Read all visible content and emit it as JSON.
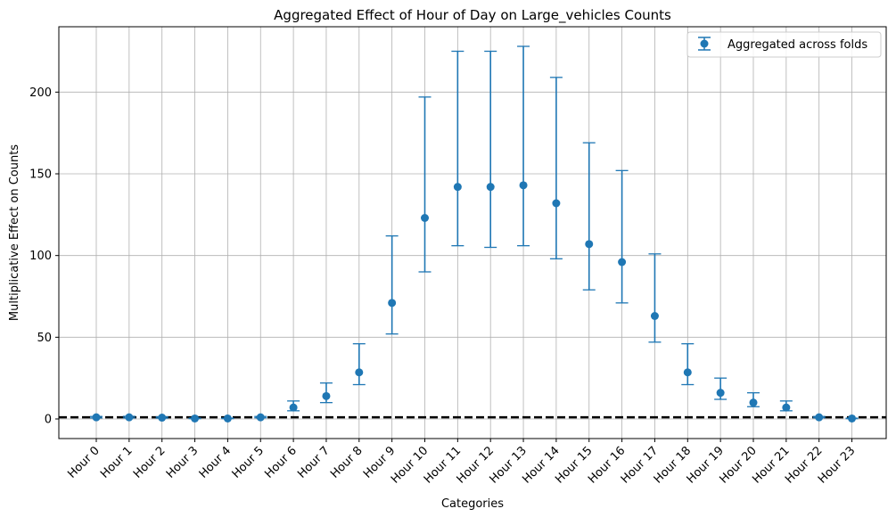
{
  "chart_data": {
    "type": "scatter",
    "title": "Aggregated Effect of Hour of Day on Large_vehicles Counts",
    "xlabel": "Categories",
    "ylabel": "Multiplicative Effect on Counts",
    "ylim": [
      -12,
      240
    ],
    "yticks": [
      0,
      50,
      100,
      150,
      200
    ],
    "grid": true,
    "legend_position": "top-right",
    "reference_line": {
      "y": 1,
      "style": "dashed",
      "color": "#000000"
    },
    "categories": [
      "Hour 0",
      "Hour 1",
      "Hour 2",
      "Hour 3",
      "Hour 4",
      "Hour 5",
      "Hour 6",
      "Hour 7",
      "Hour 8",
      "Hour 9",
      "Hour 10",
      "Hour 11",
      "Hour 12",
      "Hour 13",
      "Hour 14",
      "Hour 15",
      "Hour 16",
      "Hour 17",
      "Hour 18",
      "Hour 19",
      "Hour 20",
      "Hour 21",
      "Hour 22",
      "Hour 23"
    ],
    "series": [
      {
        "name": "Aggregated across folds",
        "color": "#1f77b4",
        "values": [
          1,
          1,
          0.8,
          0.3,
          0.3,
          1,
          7,
          14,
          28.5,
          71,
          123,
          142,
          142,
          143,
          132,
          107,
          96,
          63,
          28.5,
          16,
          10,
          7,
          1,
          0.3
        ],
        "lower": [
          0.6,
          0.6,
          0.5,
          0.2,
          0.2,
          0.7,
          5,
          10,
          21,
          52,
          90,
          106,
          105,
          106,
          98,
          79,
          71,
          47,
          21,
          12,
          7.5,
          5,
          0.7,
          0.2
        ],
        "upper": [
          1.5,
          1.6,
          1.3,
          0.5,
          0.5,
          1.5,
          11,
          22,
          46,
          112,
          197,
          225,
          225,
          228,
          209,
          169,
          152,
          101,
          46,
          25,
          16,
          11,
          1.5,
          0.5
        ]
      }
    ]
  }
}
